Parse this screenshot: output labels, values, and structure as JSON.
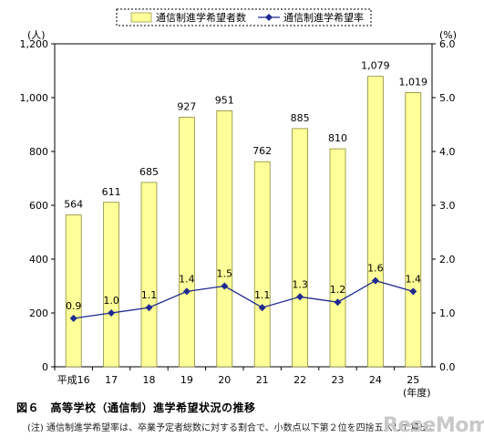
{
  "chart_data": {
    "type": "bar+line",
    "categories": [
      "平成16",
      "17",
      "18",
      "19",
      "20",
      "21",
      "22",
      "23",
      "24",
      "25"
    ],
    "series": [
      {
        "name": "通信制進学希望者数",
        "type": "bar",
        "axis": "left",
        "values": [
          564,
          611,
          685,
          927,
          951,
          762,
          885,
          810,
          1079,
          1019
        ],
        "labels": [
          "564",
          "611",
          "685",
          "927",
          "951",
          "762",
          "885",
          "810",
          "1,079",
          "1,019"
        ],
        "color": "#ffff99"
      },
      {
        "name": "通信制進学希望率",
        "type": "line",
        "axis": "right",
        "values": [
          0.9,
          1.0,
          1.1,
          1.4,
          1.5,
          1.1,
          1.3,
          1.2,
          1.6,
          1.4
        ],
        "labels": [
          "0.9",
          "1.0",
          "1.1",
          "1.4",
          "1.5",
          "1.1",
          "1.3",
          "1.2",
          "1.6",
          "1.4"
        ],
        "color": "#1f2b8f"
      }
    ],
    "y_left": {
      "unit": "(人)",
      "ylim": [
        0,
        1200
      ],
      "ticks": [
        "0",
        "200",
        "400",
        "600",
        "800",
        "1,000",
        "1,200"
      ]
    },
    "y_right": {
      "unit": "(%)",
      "ylim": [
        0,
        6
      ],
      "ticks": [
        "0.0",
        "1.0",
        "2.0",
        "3.0",
        "4.0",
        "5.0",
        "6.0"
      ]
    },
    "x_unit": "(年度)",
    "legend_position": "top"
  },
  "caption": "図６　高等学校（通信制）進学希望状況の推移",
  "note": "(注) 通信制進学希望率は、卒業予定者総数に対する割合で、小数点以下第２位を四捨五入して算出。",
  "watermark": "ReseMom"
}
